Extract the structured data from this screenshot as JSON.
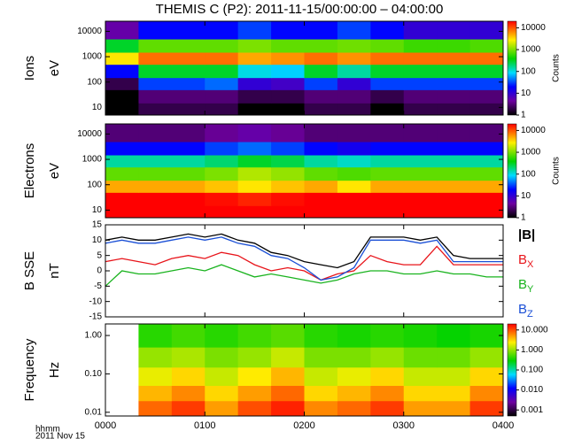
{
  "title": "THEMIS C (P2): 2011-11-15/00:00:00 – 04:00:00",
  "x_axis": {
    "xlim": [
      0,
      240
    ],
    "xticks": [
      {
        "value": 0,
        "label": "0000"
      },
      {
        "value": 60,
        "label": "0100"
      },
      {
        "value": 120,
        "label": "0200"
      },
      {
        "value": 180,
        "label": "0300"
      },
      {
        "value": 240,
        "label": "0400"
      }
    ],
    "label": "hhmm",
    "date": "2011 Nov 15"
  },
  "chart_data": [
    {
      "type": "heatmap",
      "panel_label": "Ions",
      "ylabel": "eV",
      "log_y": true,
      "ylim": [
        5,
        25000
      ],
      "yticks": [
        10,
        100,
        1000,
        10000
      ],
      "x_bins": [
        0,
        20,
        40,
        60,
        80,
        100,
        120,
        140,
        160,
        180,
        200,
        220,
        240
      ],
      "y_bins": [
        5,
        15,
        50,
        150,
        500,
        1500,
        5000,
        25000
      ],
      "z": [
        [
          1,
          2,
          2,
          2,
          1,
          1,
          2,
          2,
          1,
          2,
          2,
          2
        ],
        [
          1,
          3,
          3,
          3,
          2,
          2,
          3,
          3,
          2,
          3,
          3,
          3
        ],
        [
          2,
          30,
          30,
          40,
          10,
          8,
          30,
          10,
          30,
          30,
          30,
          30
        ],
        [
          20,
          300,
          300,
          300,
          100,
          80,
          300,
          150,
          300,
          300,
          300,
          300
        ],
        [
          3000,
          8000,
          8000,
          8000,
          5000,
          6000,
          8000,
          6000,
          8000,
          8000,
          8000,
          8000
        ],
        [
          300,
          800,
          800,
          800,
          1000,
          800,
          800,
          900,
          800,
          600,
          600,
          700
        ],
        [
          5,
          20,
          20,
          20,
          30,
          20,
          20,
          30,
          20,
          10,
          10,
          10
        ]
      ],
      "colorbar": {
        "clim": [
          1,
          20000
        ],
        "ticks": [
          1,
          10,
          100,
          1000,
          10000
        ],
        "label": "Counts"
      }
    },
    {
      "type": "heatmap",
      "panel_label": "Electrons",
      "ylabel": "eV",
      "log_y": true,
      "ylim": [
        5,
        25000
      ],
      "yticks": [
        10,
        100,
        1000,
        10000
      ],
      "x_bins": [
        0,
        20,
        40,
        60,
        80,
        100,
        120,
        140,
        160,
        180,
        200,
        220,
        240
      ],
      "y_bins": [
        5,
        15,
        50,
        150,
        500,
        1500,
        5000,
        25000
      ],
      "z": [
        [
          20000,
          20000,
          20000,
          20000,
          20000,
          20000,
          20000,
          20000,
          20000,
          20000,
          20000,
          20000
        ],
        [
          20000,
          20000,
          20000,
          18000,
          15000,
          18000,
          20000,
          20000,
          20000,
          20000,
          20000,
          20000
        ],
        [
          5000,
          5000,
          5000,
          4000,
          3000,
          4000,
          5000,
          3000,
          5000,
          5000,
          5000,
          5000
        ],
        [
          800,
          800,
          800,
          1000,
          1500,
          1200,
          800,
          700,
          800,
          800,
          800,
          800
        ],
        [
          150,
          150,
          150,
          200,
          300,
          250,
          150,
          120,
          150,
          150,
          150,
          150
        ],
        [
          20,
          20,
          20,
          30,
          40,
          30,
          20,
          15,
          20,
          20,
          20,
          20
        ],
        [
          3,
          3,
          3,
          4,
          5,
          4,
          3,
          3,
          3,
          3,
          3,
          3
        ]
      ],
      "colorbar": {
        "clim": [
          1,
          20000
        ],
        "ticks": [
          1,
          10,
          100,
          1000,
          10000
        ],
        "label": "Counts"
      }
    },
    {
      "type": "line",
      "panel_label": "B SSE",
      "ylabel": "nT",
      "ylim": [
        -15,
        15
      ],
      "yticks": [
        -15,
        -10,
        -5,
        0,
        5,
        10,
        15
      ],
      "x": [
        0,
        10,
        20,
        30,
        40,
        50,
        60,
        70,
        80,
        90,
        100,
        110,
        120,
        130,
        140,
        150,
        160,
        170,
        180,
        190,
        200,
        210,
        220,
        230,
        240
      ],
      "series": [
        {
          "name": "|B|",
          "color": "#000000",
          "values": [
            10,
            11,
            10,
            10,
            11,
            12,
            11,
            12,
            10,
            9,
            6,
            5,
            3,
            2,
            1,
            3,
            11,
            11,
            11,
            10,
            11,
            5,
            4,
            4,
            4
          ]
        },
        {
          "name": "BX",
          "color": "#e8141a",
          "values": [
            3,
            4,
            3,
            2,
            4,
            5,
            4,
            6,
            5,
            2,
            0,
            1,
            0,
            -3,
            -1,
            0,
            5,
            3,
            2,
            2,
            8,
            2,
            2,
            2,
            2
          ]
        },
        {
          "name": "BY",
          "color": "#19b31e",
          "values": [
            -5,
            0,
            -1,
            -1,
            0,
            1,
            0,
            2,
            0,
            -2,
            -1,
            -2,
            -3,
            -4,
            -3,
            -1,
            0,
            0,
            -1,
            -1,
            0,
            -1,
            -1,
            -2,
            -2
          ]
        },
        {
          "name": "BZ",
          "color": "#1a4fd6",
          "values": [
            9,
            10,
            9,
            9,
            10,
            11,
            10,
            11,
            9,
            8,
            5,
            4,
            1,
            -3,
            -2,
            1,
            10,
            10,
            10,
            9,
            10,
            3,
            3,
            3,
            3
          ]
        }
      ]
    },
    {
      "type": "heatmap",
      "panel_label": "Frequency",
      "ylabel": "Hz",
      "log_y": true,
      "ylim": [
        0.008,
        2
      ],
      "yticks": [
        {
          "value": 0.01,
          "label": "0.01"
        },
        {
          "value": 0.1,
          "label": "0.10"
        },
        {
          "value": 1,
          "label": "1.00"
        }
      ],
      "x_bins": [
        0,
        20,
        40,
        60,
        80,
        100,
        120,
        140,
        160,
        180,
        200,
        220,
        240
      ],
      "y_bins": [
        0.008,
        0.02,
        0.05,
        0.15,
        0.5,
        2
      ],
      "z": [
        [
          null,
          8,
          12,
          5,
          10,
          15,
          6,
          8,
          12,
          5,
          5,
          12
        ],
        [
          null,
          4,
          6,
          3,
          5,
          8,
          3,
          4,
          6,
          3,
          3,
          6
        ],
        [
          null,
          2,
          3,
          1.5,
          2.5,
          4,
          1.5,
          2,
          3,
          1.5,
          1.5,
          3
        ],
        [
          null,
          1,
          1.2,
          0.8,
          1,
          1.5,
          0.8,
          0.8,
          1,
          0.7,
          0.7,
          1
        ],
        [
          null,
          0.4,
          0.5,
          0.4,
          0.5,
          0.6,
          0.4,
          0.35,
          0.4,
          0.35,
          0.3,
          0.35
        ]
      ],
      "colorbar": {
        "clim": [
          0.0005,
          20
        ],
        "ticks": [
          {
            "value": 0.001,
            "label": "0.001"
          },
          {
            "value": 0.01,
            "label": "0.010"
          },
          {
            "value": 0.1,
            "label": "0.100"
          },
          {
            "value": 1,
            "label": "1.000"
          },
          {
            "value": 10,
            "label": "10.000"
          }
        ]
      }
    }
  ]
}
